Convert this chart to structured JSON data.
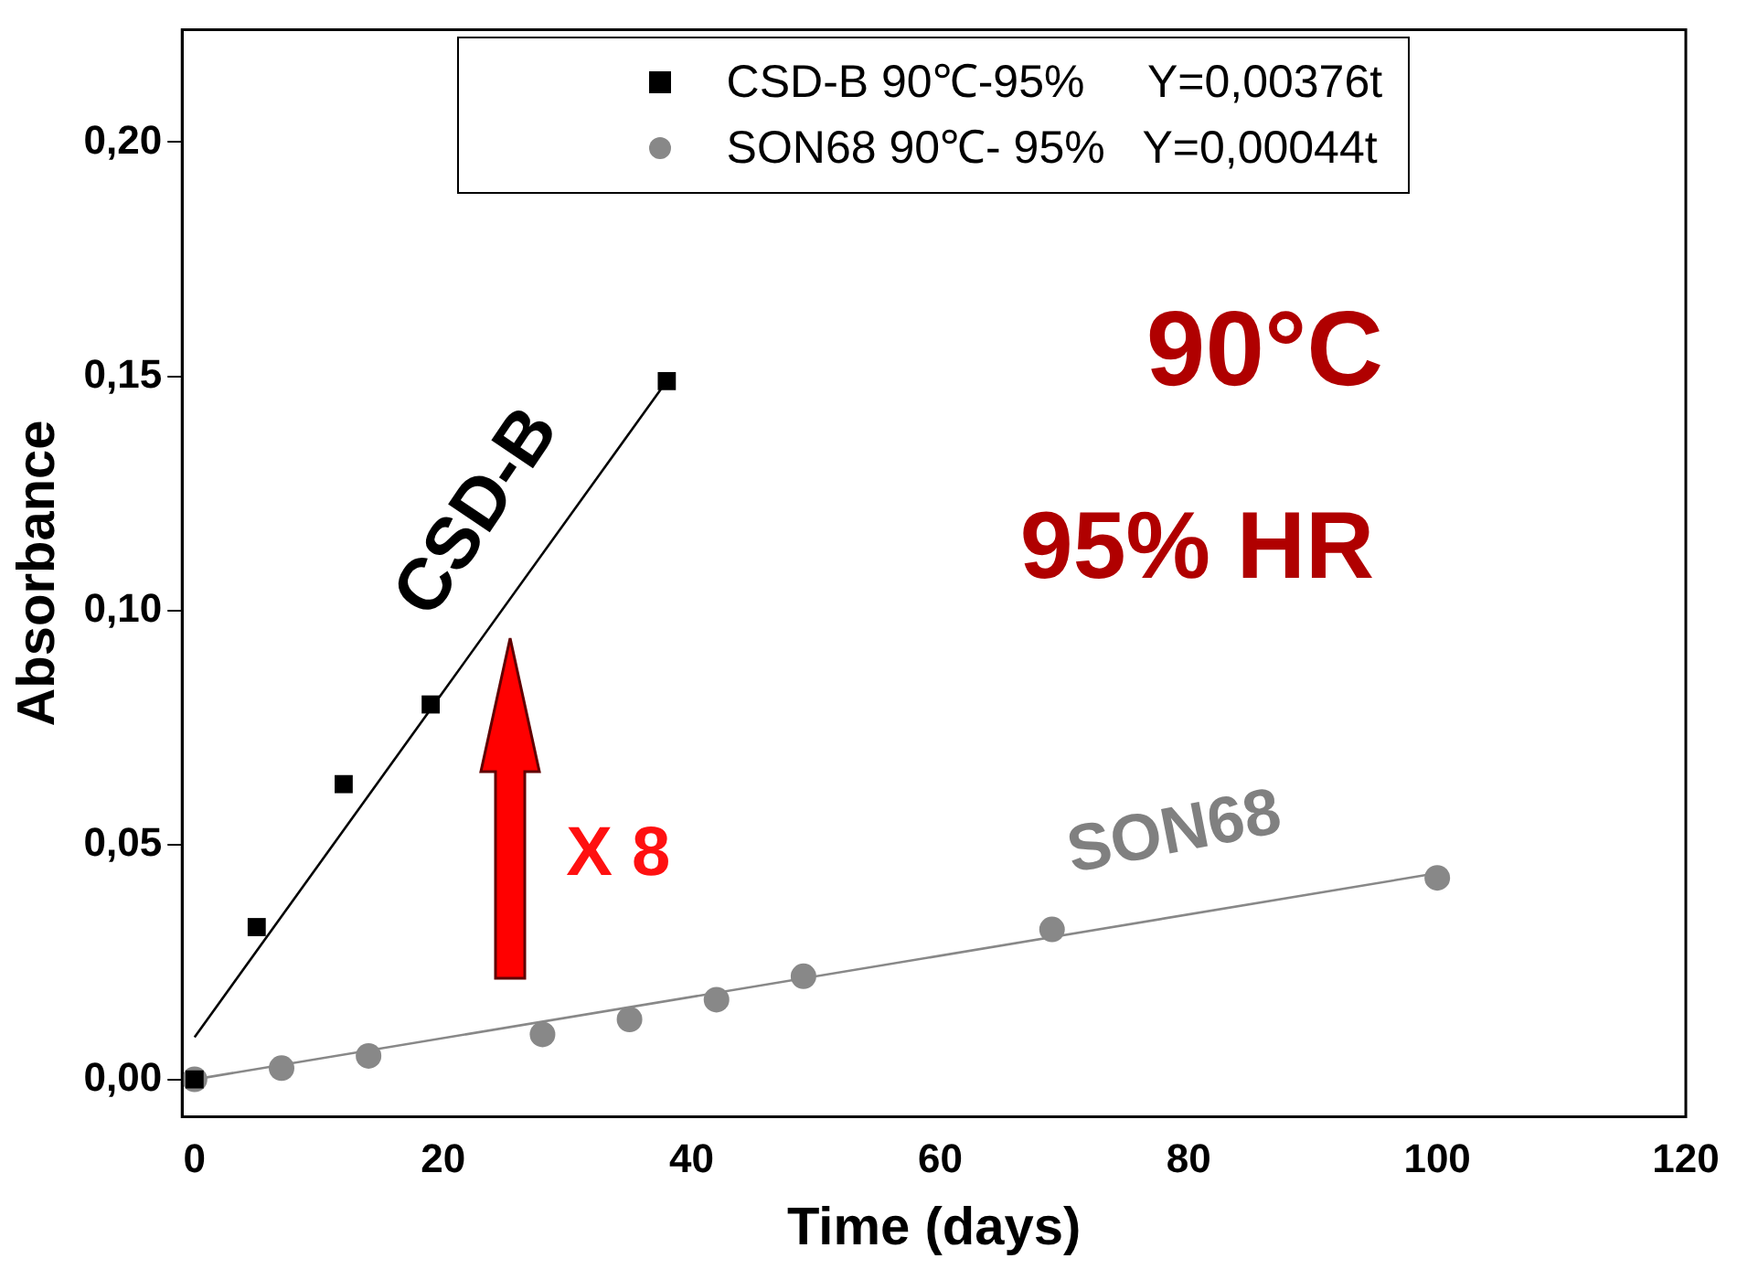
{
  "chart_data": {
    "type": "scatter",
    "xlabel": "Time (days)",
    "ylabel": "Absorbance",
    "xlim": [
      -1,
      120
    ],
    "xticks": [
      0,
      20,
      40,
      60,
      80,
      100,
      120
    ],
    "ylim": [
      -0.008,
      0.224
    ],
    "yticks": [
      {
        "value": 0,
        "label": "0,00"
      },
      {
        "value": 0.05,
        "label": "0,05"
      },
      {
        "value": 0.1,
        "label": "0,10"
      },
      {
        "value": 0.15,
        "label": "0,15"
      },
      {
        "value": 0.2,
        "label": "0,20"
      }
    ],
    "grid": false,
    "legend": "top",
    "series": [
      {
        "name": "CSD-B 90℃-95%     Y=0,00376t",
        "type": "scatter",
        "marker": "square",
        "color": "#000000",
        "x": [
          0,
          5,
          12,
          19,
          38
        ],
        "values": [
          0,
          0.0325,
          0.063,
          0.08,
          0.149
        ]
      },
      {
        "name": "SON68 90℃- 95%   Y=0,00044t",
        "type": "scatter",
        "marker": "circle",
        "color": "#888888",
        "x": [
          0,
          7,
          14,
          28,
          35,
          42,
          49,
          69,
          100
        ],
        "values": [
          0,
          0.0024,
          0.005,
          0.0096,
          0.0128,
          0.017,
          0.022,
          0.032,
          0.043
        ]
      },
      {
        "type": "line",
        "marker": "none",
        "color": "#000000",
        "x": [
          0,
          38
        ],
        "values": [
          0.009,
          0.149
        ]
      },
      {
        "type": "line",
        "marker": "none",
        "color": "#888888",
        "x": [
          0,
          100
        ],
        "values": [
          0,
          0.044
        ]
      }
    ],
    "annotations": [
      "CSD-B",
      "SON68",
      "90°C",
      "95% HR",
      "X 8"
    ]
  }
}
